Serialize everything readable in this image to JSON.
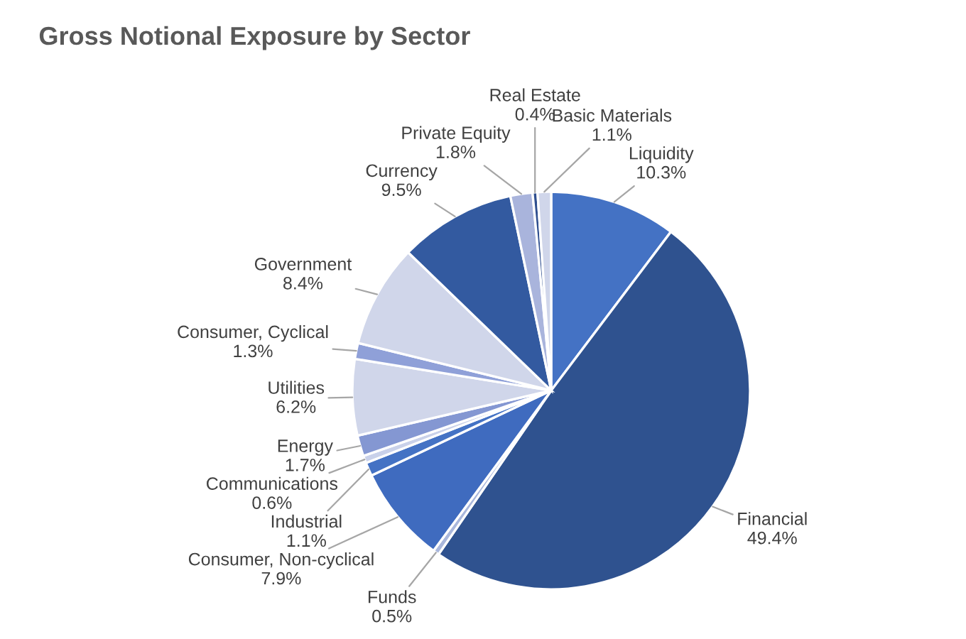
{
  "chart_data": {
    "type": "pie",
    "title": "Gross Notional Exposure by Sector",
    "categories": [
      "Liquidity",
      "Financial",
      "Funds",
      "Consumer, Non-cyclical",
      "Industrial",
      "Communications",
      "Energy",
      "Utilities",
      "Consumer, Cyclical",
      "Government",
      "Currency",
      "Private Equity",
      "Real Estate",
      "Basic Materials"
    ],
    "values": [
      10.3,
      49.4,
      0.5,
      7.9,
      1.1,
      0.6,
      1.7,
      6.2,
      1.3,
      8.4,
      9.5,
      1.8,
      0.4,
      1.1
    ],
    "colors": [
      "#4472c4",
      "#2f528f",
      "#a9b7dc",
      "#3f6bbf",
      "#4472c4",
      "#c9d1ea",
      "#8497d2",
      "#d0d6ea",
      "#8fa0d8",
      "#d0d6ea",
      "#335aa0",
      "#a9b4dc",
      "#2f4f8f",
      "#d0d6ea"
    ],
    "value_labels": [
      "10.3%",
      "49.4%",
      "0.5%",
      "7.9%",
      "1.1%",
      "0.6%",
      "1.7%",
      "6.2%",
      "1.3%",
      "8.4%",
      "9.5%",
      "1.8%",
      "0.4%",
      "1.1%"
    ]
  }
}
